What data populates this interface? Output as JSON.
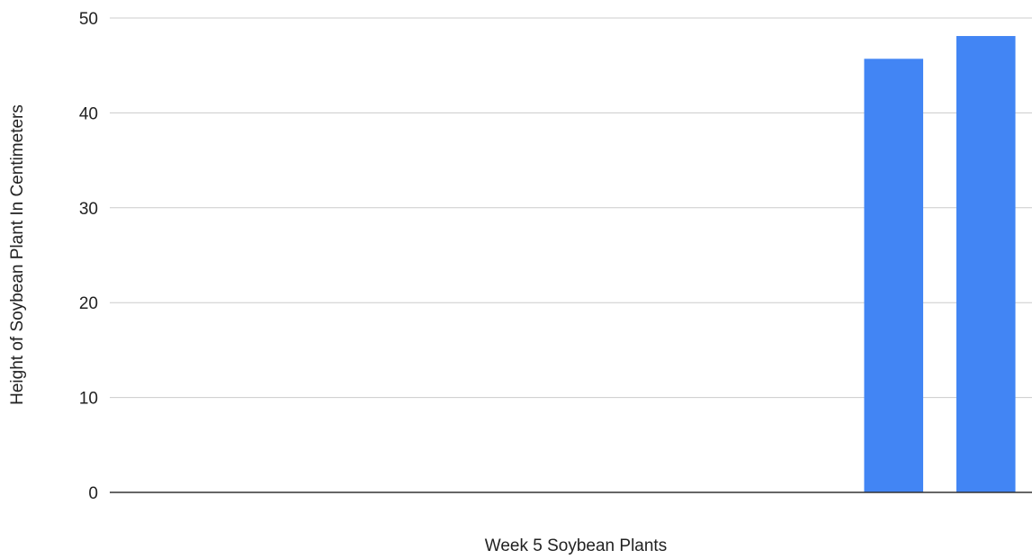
{
  "chart_data": {
    "type": "bar",
    "title": "",
    "xlabel": "Week 5 Soybean Plants",
    "ylabel": "Height of Soybean Plant In Centimeters",
    "ylim": [
      0,
      50
    ],
    "yticks": [
      0,
      10,
      20,
      30,
      40,
      50
    ],
    "categories": [
      "",
      "",
      "",
      "",
      "",
      "",
      "",
      "",
      "",
      ""
    ],
    "values": [
      null,
      null,
      null,
      null,
      null,
      null,
      null,
      null,
      45.7,
      48.1
    ],
    "grid": true,
    "legend": "none",
    "colors": {
      "bar": "#4285f4",
      "gridline": "#cccccc",
      "baseline": "#333333",
      "text": "#222222"
    }
  }
}
